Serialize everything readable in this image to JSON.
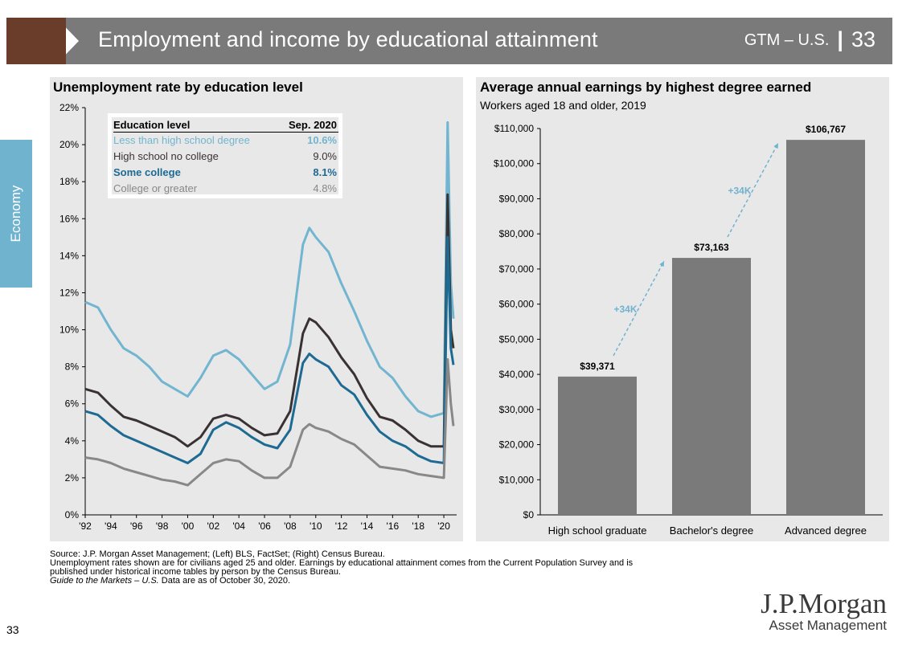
{
  "header": {
    "title": "Employment and income by educational attainment",
    "gtm": "GTM – U.S.",
    "page": "33"
  },
  "side_tab": "Economy",
  "left_panel": {
    "title": "Unemployment rate by education level",
    "legend": {
      "col1": "Education level",
      "col2": "Sep. 2020",
      "rows": [
        {
          "label": "Less than high school degree",
          "value": "10.6%",
          "color": "#72b5d0",
          "bold": false
        },
        {
          "label": "High school no college",
          "value": "9.0%",
          "color": "#3a3232",
          "bold": false
        },
        {
          "label": "Some college",
          "value": "8.1%",
          "color": "#1d6a93",
          "bold": true
        },
        {
          "label": "College or greater",
          "value": "4.8%",
          "color": "#888888",
          "bold": false
        }
      ]
    }
  },
  "right_panel": {
    "title": "Average annual earnings by highest degree earned",
    "subtitle": "Workers aged 18 and older, 2019",
    "arrow_labels": [
      "+34K",
      "+34K"
    ]
  },
  "chart_data": [
    {
      "type": "line",
      "title": "Unemployment rate by education level",
      "x": [
        1992,
        1993,
        1994,
        1995,
        1996,
        1997,
        1998,
        1999,
        2000,
        2001,
        2002,
        2003,
        2004,
        2005,
        2006,
        2007,
        2008,
        2009,
        2009.5,
        2010,
        2011,
        2012,
        2013,
        2014,
        2015,
        2016,
        2017,
        2018,
        2019,
        2020.0,
        2020.3,
        2020.55,
        2020.75
      ],
      "x_ticks": [
        "'92",
        "'94",
        "'96",
        "'98",
        "'00",
        "'02",
        "'04",
        "'06",
        "'08",
        "'10",
        "'12",
        "'14",
        "'16",
        "'18",
        "'20"
      ],
      "y_ticks": [
        "0%",
        "2%",
        "4%",
        "6%",
        "8%",
        "10%",
        "12%",
        "14%",
        "16%",
        "18%",
        "20%",
        "22%"
      ],
      "ylim": [
        0,
        22
      ],
      "xlim": [
        1992,
        2021
      ],
      "series": [
        {
          "name": "Less than high school degree",
          "color": "#72b5d0",
          "values": [
            11.5,
            11.2,
            10.0,
            9.0,
            8.6,
            8.0,
            7.2,
            6.8,
            6.4,
            7.4,
            8.6,
            8.9,
            8.4,
            7.6,
            6.8,
            7.2,
            9.2,
            14.6,
            15.5,
            15.0,
            14.2,
            12.5,
            11.0,
            9.4,
            8.0,
            7.4,
            6.4,
            5.6,
            5.3,
            5.5,
            21.2,
            12.5,
            10.6
          ]
        },
        {
          "name": "High school no college",
          "color": "#3a3232",
          "values": [
            6.8,
            6.6,
            5.9,
            5.3,
            5.1,
            4.8,
            4.5,
            4.2,
            3.7,
            4.2,
            5.2,
            5.4,
            5.2,
            4.7,
            4.3,
            4.4,
            5.6,
            9.8,
            10.6,
            10.4,
            9.6,
            8.5,
            7.6,
            6.3,
            5.3,
            5.1,
            4.6,
            4.0,
            3.7,
            3.7,
            17.3,
            10.0,
            9.0
          ]
        },
        {
          "name": "Some college",
          "color": "#1d6a93",
          "values": [
            5.6,
            5.4,
            4.8,
            4.3,
            4.0,
            3.7,
            3.4,
            3.1,
            2.8,
            3.3,
            4.6,
            5.0,
            4.7,
            4.2,
            3.8,
            3.6,
            4.6,
            8.2,
            8.7,
            8.4,
            8.0,
            7.0,
            6.5,
            5.4,
            4.5,
            4.0,
            3.7,
            3.2,
            2.9,
            2.8,
            15.0,
            9.0,
            8.1
          ]
        },
        {
          "name": "College or greater",
          "color": "#888888",
          "values": [
            3.1,
            3.0,
            2.8,
            2.5,
            2.3,
            2.1,
            1.9,
            1.8,
            1.6,
            2.2,
            2.8,
            3.0,
            2.9,
            2.4,
            2.0,
            2.0,
            2.6,
            4.6,
            4.9,
            4.7,
            4.5,
            4.1,
            3.8,
            3.2,
            2.6,
            2.5,
            2.4,
            2.2,
            2.1,
            2.0,
            8.4,
            6.0,
            4.8
          ]
        }
      ]
    },
    {
      "type": "bar",
      "title": "Average annual earnings by highest degree earned",
      "subtitle": "Workers aged 18 and older, 2019",
      "categories": [
        "High school graduate",
        "Bachelor's degree",
        "Advanced degree"
      ],
      "values": [
        39371,
        73163,
        106767
      ],
      "value_labels": [
        "$39,371",
        "$73,163",
        "$106,767"
      ],
      "y_ticks": [
        "$0",
        "$10,000",
        "$20,000",
        "$30,000",
        "$40,000",
        "$50,000",
        "$60,000",
        "$70,000",
        "$80,000",
        "$90,000",
        "$100,000",
        "$110,000"
      ],
      "ylim": [
        0,
        110000
      ],
      "bar_color": "#7a7a7a",
      "arrow_color": "#6fb3cf"
    }
  ],
  "footnotes": [
    "Source: J.P. Morgan Asset Management; (Left) BLS, FactSet; (Right) Census Bureau.",
    "Unemployment rates shown are for civilians aged 25 and older. Earnings by educational attainment comes from the Current Population Survey and is",
    "published under historical income tables by person by the Census Bureau."
  ],
  "footnote_last": {
    "italic": "Guide to the Markets – U.S.",
    "rest": " Data are as of October 30, 2020."
  },
  "page_number": "33",
  "logo": {
    "line1": "J.P.Morgan",
    "line2": "Asset Management"
  }
}
